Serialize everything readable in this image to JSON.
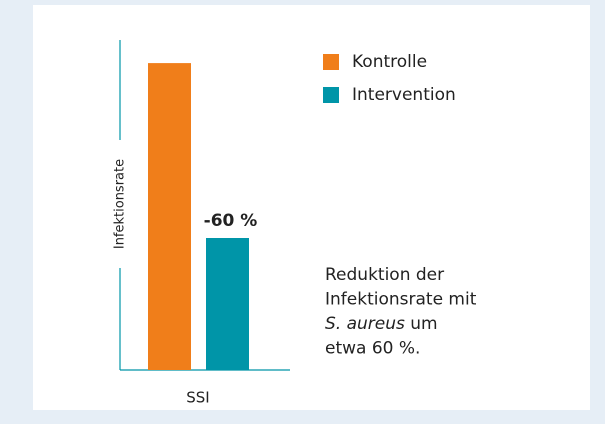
{
  "chart_data": {
    "type": "bar",
    "y_label": "Infektionsrate",
    "categories": [
      "SSI"
    ],
    "series": [
      {
        "name": "Kontrolle",
        "color": "#f07e1a",
        "values": [
          93
        ]
      },
      {
        "name": "Intervention",
        "color": "#0095a8",
        "values": [
          40
        ]
      }
    ],
    "ylim": [
      0,
      100
    ],
    "annotation": "-60 %",
    "note": [
      [
        {
          "text": "Reduktion der",
          "italic": false
        }
      ],
      [
        {
          "text": "Infektionsrate mit",
          "italic": false
        }
      ],
      [
        {
          "text": "S. aureus",
          "italic": true
        },
        {
          "text": " um",
          "italic": false
        }
      ],
      [
        {
          "text": "etwa 60 %.",
          "italic": false
        }
      ]
    ]
  }
}
